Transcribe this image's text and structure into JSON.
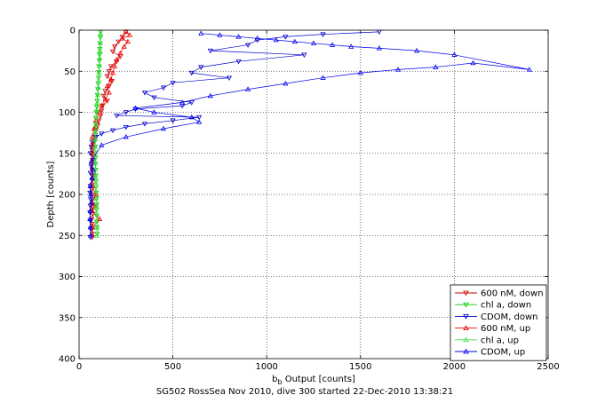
{
  "chart_data": {
    "type": "scatter",
    "title": "",
    "caption": "SG502 RossSea Nov 2010, dive 300 started 22-Dec-2010 13:38:21",
    "xlabel": "b",
    "xlabel_sub": "b",
    "xlabel_rest": " Output [counts]",
    "ylabel": "Depth [counts]",
    "xlim": [
      0,
      2500
    ],
    "ylim": [
      400,
      0
    ],
    "y_reversed": true,
    "grid": true,
    "legend_position": "bottom-right",
    "x_ticks": [
      0,
      500,
      1000,
      1500,
      2000,
      2500
    ],
    "y_ticks": [
      0,
      50,
      100,
      150,
      200,
      250,
      300,
      350,
      400
    ],
    "series": [
      {
        "name": "600 nM, down",
        "color": "#cc0000",
        "marker": "triangle-down",
        "x": [
          250,
          230,
          210,
          190,
          180,
          220,
          200,
          170,
          160,
          150,
          175,
          160,
          140,
          130,
          150,
          125,
          120,
          115,
          105,
          100,
          90,
          85,
          80,
          75,
          70,
          70,
          72,
          68,
          70,
          75,
          72,
          70,
          68,
          70,
          72,
          70,
          90,
          70,
          72,
          68,
          70,
          69,
          70,
          70
        ],
        "y": [
          2,
          8,
          14,
          20,
          26,
          32,
          38,
          44,
          50,
          56,
          62,
          68,
          74,
          80,
          86,
          92,
          98,
          104,
          110,
          116,
          122,
          128,
          134,
          140,
          146,
          152,
          158,
          164,
          170,
          176,
          182,
          188,
          194,
          200,
          206,
          212,
          214,
          218,
          224,
          230,
          236,
          242,
          248,
          252
        ]
      },
      {
        "name": "chl a, down",
        "color": "#00cc00",
        "marker": "triangle-down",
        "x": [
          115,
          113,
          112,
          110,
          109,
          108,
          106,
          105,
          104,
          102,
          100,
          98,
          96,
          94,
          92,
          90,
          88,
          86,
          85,
          85,
          86,
          86,
          87,
          88,
          88,
          89,
          90,
          90,
          91,
          92,
          92,
          93,
          94,
          95,
          96,
          96
        ],
        "y": [
          2,
          9,
          16,
          23,
          30,
          37,
          44,
          51,
          58,
          65,
          72,
          79,
          86,
          93,
          100,
          107,
          114,
          121,
          128,
          135,
          142,
          149,
          156,
          163,
          170,
          177,
          184,
          191,
          198,
          205,
          212,
          219,
          226,
          233,
          240,
          248
        ]
      },
      {
        "name": "CDOM, down",
        "color": "#0000cc",
        "marker": "triangle-down",
        "x": [
          1600,
          1300,
          1100,
          950,
          900,
          700,
          1200,
          850,
          650,
          600,
          800,
          500,
          450,
          350,
          400,
          600,
          550,
          300,
          250,
          200,
          640,
          500,
          350,
          250,
          180,
          120,
          90,
          70,
          65,
          60,
          75,
          65,
          60,
          70,
          60,
          58,
          62,
          60,
          58,
          60,
          62,
          60
        ],
        "y": [
          2,
          5,
          8,
          12,
          18,
          25,
          30,
          38,
          45,
          52,
          58,
          64,
          70,
          76,
          82,
          88,
          92,
          96,
          100,
          104,
          106,
          110,
          114,
          118,
          122,
          126,
          130,
          136,
          142,
          150,
          158,
          166,
          174,
          182,
          190,
          198,
          206,
          214,
          222,
          232,
          242,
          252
        ]
      },
      {
        "name": "600 nM, up",
        "color": "#ee0000",
        "marker": "triangle-up",
        "x": [
          70,
          72,
          110,
          70,
          72,
          68,
          90,
          70,
          70,
          72,
          70,
          75,
          72,
          70,
          80,
          90,
          110,
          120,
          140,
          160,
          150,
          170,
          180,
          190,
          200,
          220,
          240,
          260,
          230,
          270,
          250
        ],
        "y": [
          250,
          240,
          230,
          220,
          214,
          210,
          200,
          190,
          180,
          170,
          160,
          150,
          140,
          130,
          120,
          110,
          100,
          92,
          84,
          76,
          68,
          60,
          52,
          44,
          36,
          28,
          20,
          14,
          10,
          6,
          2
        ]
      },
      {
        "name": "chl a, up",
        "color": "#44dd44",
        "marker": "triangle-up",
        "x": [
          96,
          95,
          94,
          93,
          92,
          91,
          90,
          89,
          88,
          87,
          86,
          86,
          85,
          86,
          88,
          90,
          92,
          95,
          98,
          100,
          103,
          105,
          107,
          109,
          111,
          112,
          114,
          115
        ],
        "y": [
          250,
          241,
          232,
          223,
          214,
          205,
          196,
          187,
          178,
          169,
          160,
          151,
          142,
          133,
          124,
          115,
          106,
          97,
          88,
          79,
          70,
          61,
          52,
          43,
          34,
          25,
          16,
          4
        ]
      },
      {
        "name": "CDOM, up",
        "color": "#0000ee",
        "marker": "triangle-up",
        "x": [
          62,
          60,
          58,
          60,
          65,
          62,
          60,
          70,
          75,
          65,
          120,
          250,
          450,
          640,
          600,
          400,
          300,
          550,
          700,
          900,
          1100,
          1300,
          1500,
          1700,
          1900,
          2100,
          2400,
          2000,
          1800,
          1600,
          1450,
          1350,
          1250,
          1150,
          1050,
          950,
          850,
          750,
          650
        ],
        "y": [
          250,
          240,
          230,
          220,
          210,
          200,
          190,
          180,
          170,
          160,
          140,
          130,
          120,
          112,
          106,
          100,
          95,
          88,
          80,
          72,
          65,
          58,
          52,
          48,
          45,
          40,
          48,
          30,
          25,
          22,
          20,
          18,
          16,
          14,
          12,
          10,
          8,
          6,
          4
        ]
      }
    ]
  }
}
